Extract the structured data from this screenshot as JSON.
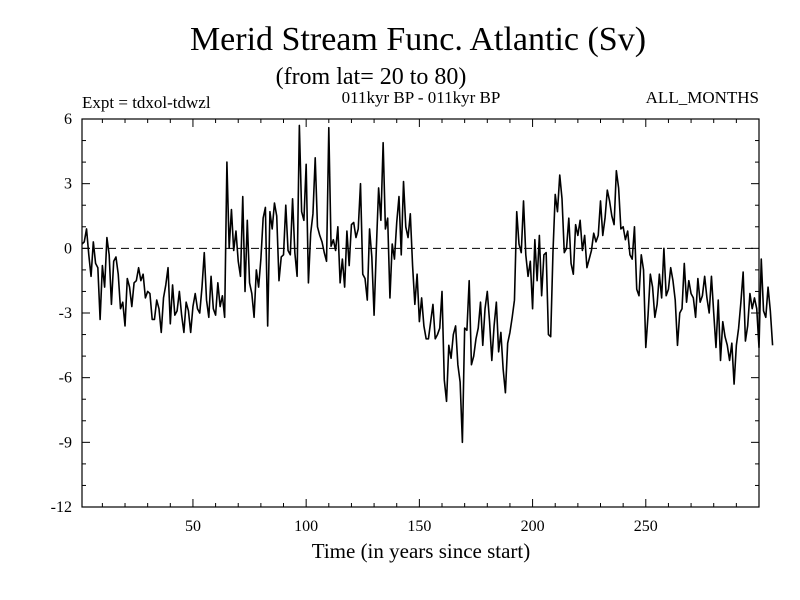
{
  "chart_data": {
    "type": "line",
    "title": "Merid Stream Func. Atlantic (Sv)",
    "subtitle": "(from lat= 20 to 80)",
    "expt_label": "Expt = tdxol-tdwzl",
    "period_label": "011kyr BP - 011kyr BP",
    "months_label": "ALL_MONTHS",
    "xlabel": "Time (in years since start)",
    "ylabel": "",
    "xlim": [
      1,
      300
    ],
    "ylim": [
      -12,
      6
    ],
    "x_ticks": [
      50,
      100,
      150,
      200,
      250
    ],
    "y_ticks": [
      6,
      3,
      0,
      -3,
      -6,
      -9,
      -12
    ],
    "zero_line": "dashed",
    "grid": false,
    "series": [
      {
        "x_start": 1,
        "x_step": 1,
        "values": [
          0.2,
          0.3,
          0.9,
          -0.3,
          -1.3,
          0.3,
          -0.7,
          -0.9,
          -3.3,
          -0.8,
          -1.8,
          0.5,
          -0.3,
          -2.6,
          -0.6,
          -0.4,
          -1.2,
          -2.8,
          -2.5,
          -3.6,
          -1.4,
          -1.8,
          -2.7,
          -1.6,
          -1.5,
          -0.9,
          -1.5,
          -1.2,
          -2.3,
          -2.0,
          -2.1,
          -3.3,
          -3.3,
          -2.4,
          -2.8,
          -3.9,
          -2.3,
          -1.7,
          -0.9,
          -3.5,
          -1.7,
          -3.1,
          -2.9,
          -2.0,
          -3.1,
          -3.9,
          -2.5,
          -2.9,
          -3.9,
          -2.7,
          -2.1,
          -2.8,
          -3.0,
          -1.8,
          -0.2,
          -2.4,
          -3.2,
          -1.3,
          -2.8,
          -3.1,
          -1.6,
          -2.7,
          -2.2,
          -3.2,
          4.0,
          0.0,
          1.8,
          -0.1,
          0.8,
          -0.6,
          -1.3,
          2.4,
          -2.0,
          1.3,
          -1.6,
          -2.1,
          -3.2,
          -1.0,
          -1.8,
          -0.5,
          1.4,
          1.9,
          -3.6,
          1.7,
          0.9,
          2.1,
          1.5,
          -1.5,
          -0.4,
          -0.3,
          2.0,
          -0.1,
          -0.3,
          2.3,
          -0.2,
          -1.3,
          5.7,
          1.7,
          1.3,
          3.9,
          -1.6,
          0.7,
          1.6,
          4.2,
          1.0,
          0.6,
          0.3,
          -0.2,
          -0.6,
          5.6,
          0.1,
          0.4,
          -0.1,
          1.0,
          -1.6,
          -0.5,
          -1.8,
          0.8,
          -0.8,
          1.1,
          1.2,
          0.5,
          0.9,
          3.0,
          -1.2,
          -1.4,
          -2.4,
          0.9,
          -0.4,
          -3.1,
          0.0,
          2.8,
          1.3,
          4.9,
          0.9,
          1.4,
          -2.3,
          0.2,
          -0.5,
          1.2,
          2.4,
          -0.3,
          3.1,
          1.0,
          0.5,
          1.6,
          -0.8,
          -2.6,
          -1.2,
          -3.4,
          -2.3,
          -3.6,
          -4.2,
          -4.2,
          -3.4,
          -2.6,
          -4.2,
          -4.0,
          -3.7,
          -2.0,
          -6.1,
          -7.1,
          -4.5,
          -5.1,
          -4.0,
          -3.6,
          -5.4,
          -6.2,
          -9.0,
          -3.7,
          -3.8,
          -1.5,
          -5.4,
          -5.0,
          -4.2,
          -3.7,
          -2.5,
          -4.5,
          -2.8,
          -2.0,
          -3.4,
          -5.2,
          -3.6,
          -2.5,
          -4.8,
          -3.9,
          -5.6,
          -6.7,
          -4.4,
          -3.9,
          -3.2,
          -2.4,
          1.7,
          0.2,
          -0.2,
          2.2,
          -0.3,
          -1.3,
          -0.6,
          -2.8,
          0.4,
          -1.5,
          0.6,
          -2.2,
          -0.3,
          -0.2,
          -4.0,
          -4.1,
          -0.2,
          2.5,
          1.7,
          3.4,
          2.3,
          -0.2,
          0.0,
          1.4,
          -0.7,
          -1.2,
          1.1,
          0.6,
          1.3,
          -0.1,
          0.6,
          -0.9,
          -0.5,
          -0.1,
          0.7,
          0.3,
          0.6,
          2.2,
          0.6,
          1.4,
          2.7,
          2.2,
          1.5,
          1.1,
          3.6,
          2.8,
          0.9,
          1.0,
          0.4,
          0.8,
          -0.3,
          -0.5,
          1.0,
          -1.9,
          -2.2,
          -0.3,
          -1.0,
          -4.6,
          -3.1,
          -1.2,
          -1.8,
          -3.2,
          -2.6,
          -1.2,
          -2.3,
          0.0,
          -2.2,
          -1.9,
          -0.9,
          -1.5,
          -2.4,
          -4.5,
          -3.0,
          -2.8,
          -0.7,
          -2.5,
          -1.5,
          -2.1,
          -2.3,
          -3.2,
          -1.4,
          -2.5,
          -2.2,
          -1.3,
          -2.3,
          -3.0,
          -1.3,
          -3.0,
          -4.6,
          -2.4,
          -5.2,
          -3.4,
          -4.1,
          -4.5,
          -5.2,
          -4.4,
          -6.3,
          -4.5,
          -3.7,
          -2.5,
          -1.1,
          -4.3,
          -3.6,
          -2.1,
          -2.8,
          -2.3,
          -2.8,
          -4.6,
          -0.5,
          -2.9,
          -3.2,
          -1.8,
          -2.9,
          -4.5
        ]
      }
    ]
  }
}
